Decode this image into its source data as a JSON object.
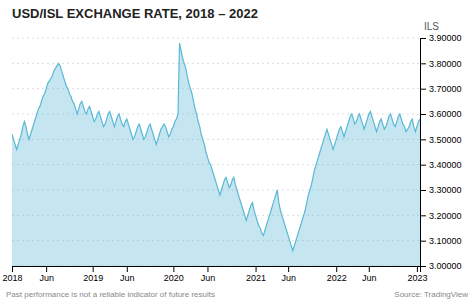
{
  "chart_data": {
    "type": "area",
    "title": "USD/ISL EXCHANGE RATE, 2018 – 2022",
    "ylabel": "ILS",
    "color": "#5ab8d5",
    "grid": true,
    "ylim": [
      3.0,
      3.9
    ],
    "yticks": [
      {
        "value": 3.0,
        "label": "3.00000"
      },
      {
        "value": 3.1,
        "label": "3.10000"
      },
      {
        "value": 3.2,
        "label": "3.20000"
      },
      {
        "value": 3.3,
        "label": "3.30000"
      },
      {
        "value": 3.4,
        "label": "3.40000"
      },
      {
        "value": 3.5,
        "label": "3.50000"
      },
      {
        "value": 3.6,
        "label": "3.60000"
      },
      {
        "value": 3.7,
        "label": "3.70000"
      },
      {
        "value": 3.8,
        "label": "3.80000"
      },
      {
        "value": 3.9,
        "label": "3.90000"
      }
    ],
    "annotations": [
      "Past performance is not a reliable indicator of future results",
      "Source: TradingView"
    ],
    "categories": [
      "2018",
      null,
      null,
      null,
      null,
      null,
      null,
      null,
      null,
      null,
      null,
      null,
      null,
      null,
      null,
      null,
      null,
      null,
      null,
      null,
      null,
      null,
      "Jun",
      null,
      null,
      null,
      null,
      null,
      null,
      null,
      null,
      null,
      null,
      null,
      null,
      null,
      null,
      null,
      null,
      null,
      null,
      null,
      null,
      null,
      null,
      null,
      null,
      null,
      null,
      null,
      null,
      null,
      "2019",
      null,
      null,
      null,
      null,
      null,
      null,
      null,
      null,
      null,
      null,
      null,
      null,
      null,
      null,
      null,
      null,
      null,
      null,
      null,
      null,
      null,
      "Jun",
      null,
      null,
      null,
      null,
      null,
      null,
      null,
      null,
      null,
      null,
      null,
      null,
      null,
      null,
      null,
      null,
      null,
      null,
      null,
      null,
      null,
      null,
      null,
      null,
      null,
      null,
      null,
      null,
      null,
      "2020",
      null,
      null,
      null,
      null,
      null,
      null,
      null,
      null,
      null,
      null,
      null,
      null,
      null,
      null,
      null,
      null,
      null,
      null,
      null,
      null,
      null,
      "Jun",
      null,
      null,
      null,
      null,
      null,
      null,
      null,
      null,
      null,
      null,
      null,
      null,
      null,
      null,
      null,
      null,
      null,
      null,
      null,
      null,
      null,
      null,
      null,
      null,
      null,
      null,
      null,
      null,
      null,
      null,
      "2021",
      null,
      null,
      null,
      null,
      null,
      null,
      null,
      null,
      null,
      null,
      null,
      null,
      null,
      null,
      null,
      null,
      null,
      null,
      null,
      null,
      "Jun",
      null,
      null,
      null,
      null,
      null,
      null,
      null,
      null,
      null,
      null,
      null,
      null,
      null,
      null,
      null,
      null,
      null,
      null,
      null,
      null,
      null,
      null,
      null,
      null,
      null,
      null,
      null,
      null,
      null,
      null,
      "2022",
      null,
      null,
      null,
      null,
      null,
      null,
      null,
      null,
      null,
      null,
      null,
      null,
      null,
      null,
      null,
      null,
      null,
      null,
      null,
      null,
      "Jun",
      null,
      null,
      null,
      null,
      null,
      null,
      null,
      null,
      null,
      null,
      null,
      null,
      null,
      null,
      null,
      null,
      null,
      null,
      null,
      null,
      null,
      null,
      null,
      null,
      null,
      null,
      null,
      null,
      null,
      null,
      "2023",
      null,
      null
    ],
    "values": [
      3.52,
      3.5,
      3.48,
      3.46,
      3.48,
      3.5,
      3.52,
      3.55,
      3.57,
      3.55,
      3.52,
      3.5,
      3.52,
      3.54,
      3.56,
      3.58,
      3.6,
      3.62,
      3.63,
      3.65,
      3.67,
      3.68,
      3.7,
      3.72,
      3.73,
      3.74,
      3.75,
      3.77,
      3.78,
      3.79,
      3.8,
      3.79,
      3.77,
      3.75,
      3.73,
      3.71,
      3.7,
      3.68,
      3.67,
      3.65,
      3.64,
      3.62,
      3.6,
      3.62,
      3.64,
      3.65,
      3.63,
      3.61,
      3.6,
      3.62,
      3.63,
      3.61,
      3.59,
      3.57,
      3.58,
      3.6,
      3.61,
      3.59,
      3.57,
      3.55,
      3.56,
      3.58,
      3.6,
      3.61,
      3.59,
      3.57,
      3.55,
      3.57,
      3.59,
      3.6,
      3.58,
      3.56,
      3.55,
      3.57,
      3.58,
      3.56,
      3.54,
      3.52,
      3.5,
      3.51,
      3.53,
      3.55,
      3.56,
      3.54,
      3.52,
      3.5,
      3.51,
      3.53,
      3.55,
      3.56,
      3.54,
      3.52,
      3.5,
      3.48,
      3.5,
      3.52,
      3.54,
      3.55,
      3.56,
      3.55,
      3.53,
      3.51,
      3.52,
      3.54,
      3.55,
      3.57,
      3.58,
      3.6,
      3.88,
      3.85,
      3.82,
      3.8,
      3.78,
      3.75,
      3.72,
      3.7,
      3.68,
      3.65,
      3.62,
      3.6,
      3.57,
      3.55,
      3.52,
      3.5,
      3.48,
      3.45,
      3.43,
      3.41,
      3.4,
      3.38,
      3.36,
      3.34,
      3.32,
      3.3,
      3.28,
      3.3,
      3.32,
      3.34,
      3.35,
      3.33,
      3.31,
      3.32,
      3.34,
      3.35,
      3.32,
      3.3,
      3.28,
      3.26,
      3.24,
      3.22,
      3.2,
      3.18,
      3.2,
      3.22,
      3.24,
      3.25,
      3.22,
      3.2,
      3.18,
      3.16,
      3.15,
      3.13,
      3.12,
      3.14,
      3.16,
      3.18,
      3.2,
      3.22,
      3.24,
      3.26,
      3.28,
      3.3,
      3.25,
      3.22,
      3.2,
      3.18,
      3.16,
      3.14,
      3.12,
      3.1,
      3.08,
      3.06,
      3.08,
      3.1,
      3.12,
      3.14,
      3.16,
      3.18,
      3.2,
      3.22,
      3.25,
      3.28,
      3.3,
      3.32,
      3.35,
      3.38,
      3.4,
      3.42,
      3.44,
      3.46,
      3.48,
      3.5,
      3.52,
      3.54,
      3.52,
      3.5,
      3.48,
      3.46,
      3.48,
      3.5,
      3.52,
      3.54,
      3.55,
      3.53,
      3.51,
      3.53,
      3.55,
      3.57,
      3.59,
      3.6,
      3.58,
      3.56,
      3.57,
      3.59,
      3.6,
      3.58,
      3.56,
      3.54,
      3.56,
      3.58,
      3.6,
      3.61,
      3.59,
      3.57,
      3.55,
      3.53,
      3.55,
      3.57,
      3.58,
      3.56,
      3.54,
      3.55,
      3.57,
      3.59,
      3.6,
      3.58,
      3.56,
      3.55,
      3.57,
      3.59,
      3.6,
      3.58,
      3.56,
      3.55,
      3.53,
      3.54,
      3.55,
      3.57,
      3.58,
      3.55,
      3.53,
      3.55,
      3.57,
      3.58
    ]
  }
}
